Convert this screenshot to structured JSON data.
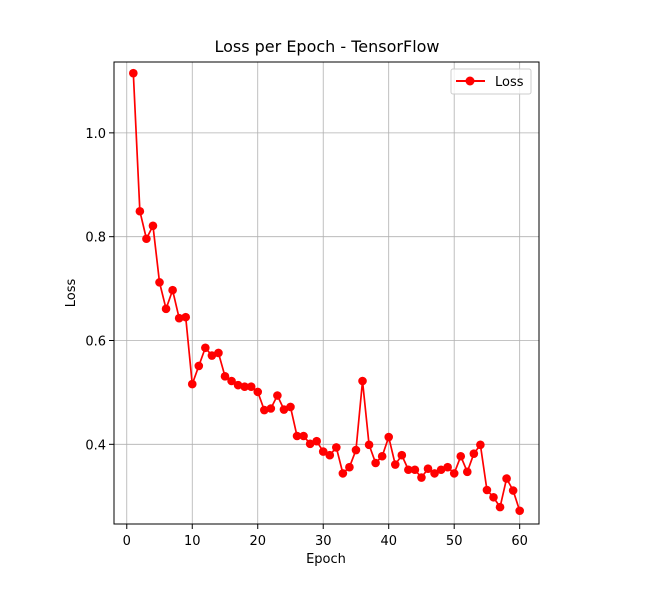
{
  "chart_data": {
    "type": "line",
    "title": "Loss per Epoch - TensorFlow",
    "xlabel": "Epoch",
    "ylabel": "Loss",
    "xlim": [
      -1.95,
      62.95
    ],
    "ylim": [
      0.2465,
      1.1365
    ],
    "xticks": [
      0,
      10,
      20,
      30,
      40,
      50,
      60
    ],
    "yticks": [
      0.4,
      0.6,
      0.8,
      1.0
    ],
    "xtick_labels": [
      "0",
      "10",
      "20",
      "30",
      "40",
      "50",
      "60"
    ],
    "ytick_labels": [
      "0.4",
      "0.6",
      "0.8",
      "1.0"
    ],
    "grid": true,
    "legend_position": "top-right",
    "series": [
      {
        "name": "Loss",
        "color": "#ff0000",
        "marker": "circle",
        "x": [
          1,
          2,
          3,
          4,
          5,
          6,
          7,
          8,
          9,
          10,
          11,
          12,
          13,
          14,
          15,
          16,
          17,
          18,
          19,
          20,
          21,
          22,
          23,
          24,
          25,
          26,
          27,
          28,
          29,
          30,
          31,
          32,
          33,
          34,
          35,
          36,
          37,
          38,
          39,
          40,
          41,
          42,
          43,
          44,
          45,
          46,
          47,
          48,
          49,
          50,
          51,
          52,
          53,
          54,
          55,
          56,
          57,
          58,
          59,
          60
        ],
        "y": [
          1.115,
          0.849,
          0.796,
          0.821,
          0.712,
          0.661,
          0.697,
          0.643,
          0.645,
          0.516,
          0.551,
          0.586,
          0.571,
          0.576,
          0.531,
          0.522,
          0.514,
          0.511,
          0.511,
          0.501,
          0.466,
          0.469,
          0.494,
          0.467,
          0.472,
          0.416,
          0.416,
          0.401,
          0.406,
          0.386,
          0.379,
          0.394,
          0.344,
          0.356,
          0.389,
          0.522,
          0.399,
          0.364,
          0.377,
          0.414,
          0.361,
          0.379,
          0.351,
          0.351,
          0.336,
          0.353,
          0.344,
          0.351,
          0.356,
          0.344,
          0.377,
          0.347,
          0.382,
          0.399,
          0.312,
          0.298,
          0.279,
          0.334,
          0.311,
          0.272
        ]
      }
    ]
  }
}
